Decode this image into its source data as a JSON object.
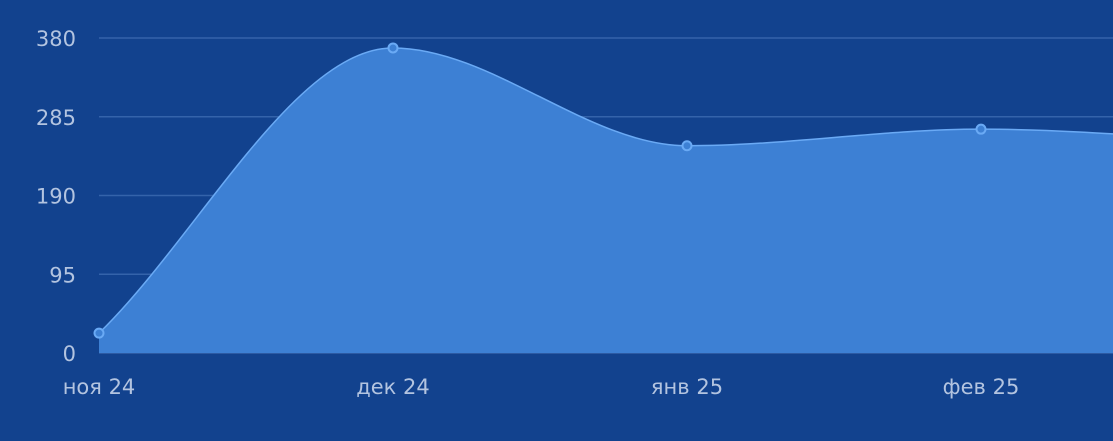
{
  "chart_data": {
    "type": "area",
    "categories": [
      "ноя 24",
      "дек 24",
      "янв 25",
      "фев 25"
    ],
    "series": [
      {
        "values": [
          24,
          368,
          250,
          270
        ]
      }
    ],
    "extends_past_last_category": true,
    "y_ticks": [
      "0",
      "95",
      "190",
      "285",
      "380"
    ],
    "ylim": [
      0,
      380
    ],
    "title": "",
    "xlabel": "",
    "ylabel": "",
    "grid": true,
    "legend": "none",
    "colors": {
      "background": "#12428e",
      "area_fill": "#3d80d4",
      "line": "#6aaaf5",
      "grid": "#3463aa",
      "tick_text": "#b3c4e0"
    }
  }
}
